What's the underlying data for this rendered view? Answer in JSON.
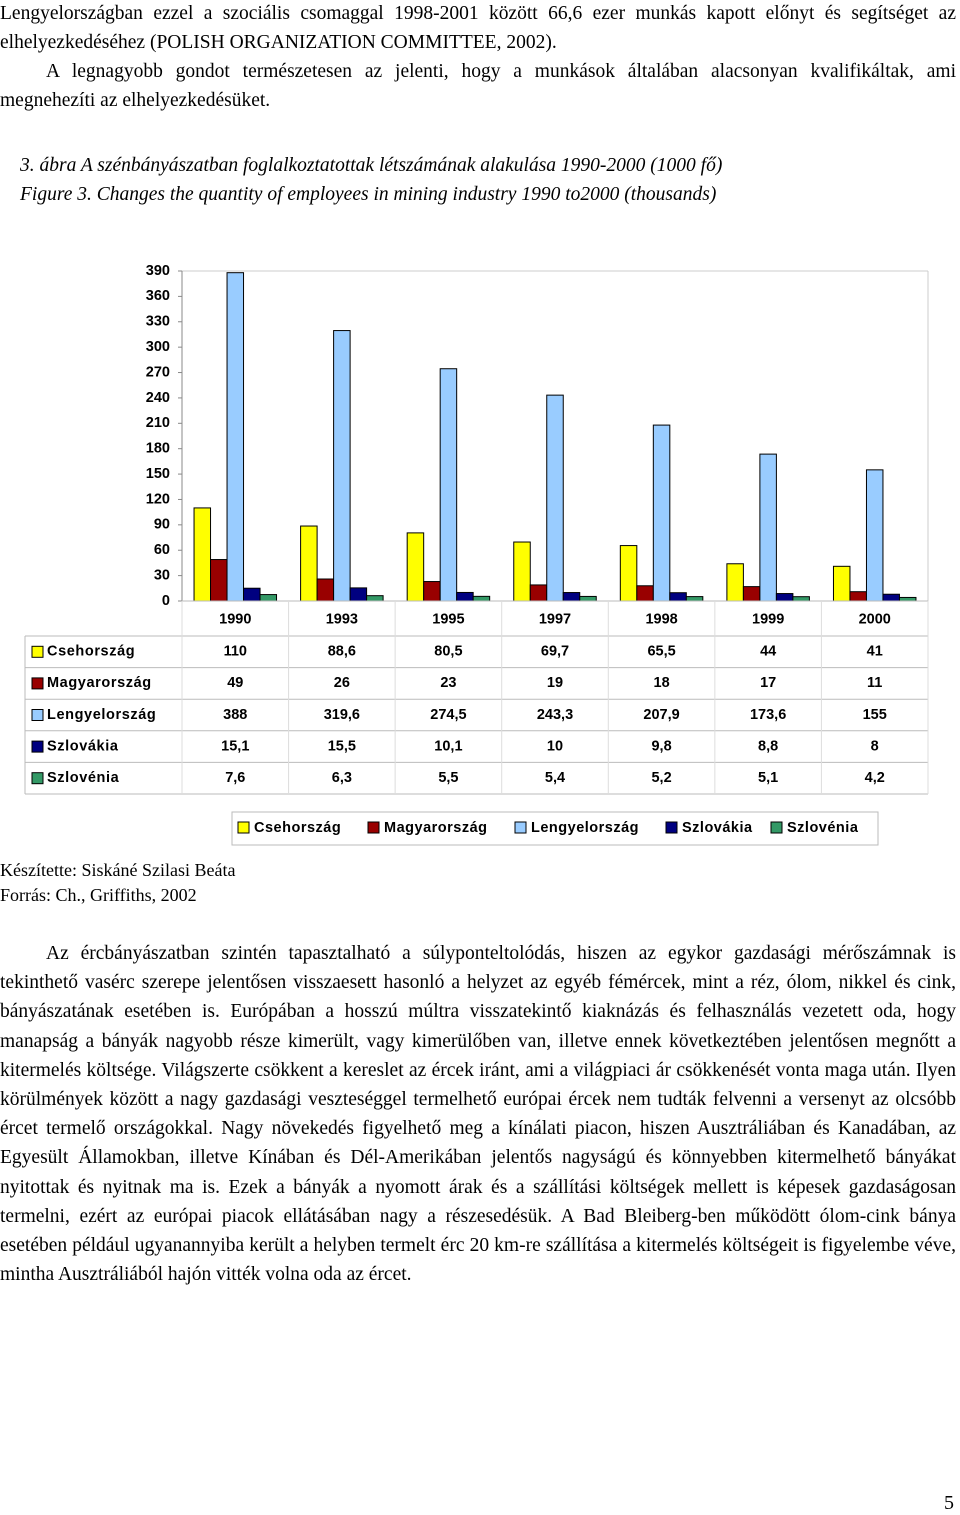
{
  "intro": [
    "Lengyelországban ezzel a szociális csomaggal 1998-2001 között 66,6 ezer munkás kapott előnyt és segítséget az elhelyezkedéséhez (POLISH ORGANIZATION COMMITTEE, 2002).",
    "A legnagyobb gondot természetesen az jelenti, hogy a munkások általában alacsonyan kvalifikáltak, ami megnehezíti az elhelyezkedésüket."
  ],
  "figure": {
    "caption_hu": "3. ábra A szénbányászatban foglalkoztatottak létszámának alakulása 1990-2000 (1000 fő)",
    "caption_en": "Figure 3. Changes the quantity of employees in mining industry 1990 to2000 (thousands)"
  },
  "chart_data": {
    "type": "bar",
    "categories": [
      "1990",
      "1993",
      "1995",
      "1997",
      "1998",
      "1999",
      "2000"
    ],
    "series": [
      {
        "name": "Csehország",
        "color": "#ffff00",
        "values": [
          110,
          88.6,
          80.5,
          69.7,
          65.5,
          44,
          41
        ],
        "value_labels": [
          "110",
          "88,6",
          "80,5",
          "69,7",
          "65,5",
          "44",
          "41"
        ]
      },
      {
        "name": "Magyarország",
        "color": "#990000",
        "values": [
          49,
          26,
          23,
          19,
          18,
          17,
          11
        ],
        "value_labels": [
          "49",
          "26",
          "23",
          "19",
          "18",
          "17",
          "11"
        ]
      },
      {
        "name": "Lengyelország",
        "color": "#99ccff",
        "values": [
          388,
          319.6,
          274.5,
          243.3,
          207.9,
          173.6,
          155
        ],
        "value_labels": [
          "388",
          "319,6",
          "274,5",
          "243,3",
          "207,9",
          "173,6",
          "155"
        ]
      },
      {
        "name": "Szlovákia",
        "color": "#000080",
        "values": [
          15.1,
          15.5,
          10.1,
          10,
          9.8,
          8.8,
          8
        ],
        "value_labels": [
          "15,1",
          "15,5",
          "10,1",
          "10",
          "9,8",
          "8,8",
          "8"
        ]
      },
      {
        "name": "Szlovénia",
        "color": "#339966",
        "values": [
          7.6,
          6.3,
          5.5,
          5.4,
          5.2,
          5.1,
          4.2
        ],
        "value_labels": [
          "7,6",
          "6,3",
          "5,5",
          "5,4",
          "5,2",
          "5,1",
          "4,2"
        ]
      }
    ],
    "ylim": [
      0,
      390
    ],
    "yticks": [
      0,
      30,
      60,
      90,
      120,
      150,
      180,
      210,
      240,
      270,
      300,
      330,
      360,
      390
    ],
    "grid": false,
    "data_table": true,
    "legend": "bottom"
  },
  "credits": [
    "Készítette: Siskáné Szilasi Beáta",
    "Forrás: Ch., Griffiths, 2002"
  ],
  "body": "Az ércbányászatban szintén tapasztalható a súlyponteltolódás, hiszen az egykor gazdasági mérőszámnak is tekinthető vasérc szerepe jelentősen visszaesett hasonló a helyzet az egyéb fémércek, mint a réz, ólom, nikkel és cink, bányászatának esetében is. Európában a hosszú múltra visszatekintő kiaknázás és felhasználás vezetett oda, hogy manapság a bányák nagyobb része kimerült, vagy kimerülőben van, illetve ennek következtében jelentősen megnőtt a kitermelés költsége. Világszerte csökkent a kereslet az ércek iránt, ami a világpiaci ár csökkenését vonta maga után. Ilyen körülmények között a nagy gazdasági veszteséggel termelhető európai ércek nem tudták felvenni a versenyt az olcsóbb ércet termelő országokkal. Nagy növekedés figyelhető meg a kínálati piacon, hiszen Ausztráliában és Kanadában, az Egyesült Államokban, illetve Kínában és Dél-Amerikában jelentős nagyságú és könnyebben kitermelhető bányákat nyitottak és nyitnak ma is. Ezek a bányák a nyomott árak és a szállítási költségek mellett is képesek gazdaságosan termelni, ezért az európai piacok ellátásában nagy a részesedésük. A Bad Bleiberg-ben működött ólom-cink bánya esetében például ugyanannyiba került a helyben termelt érc 20 km-re szállítása a kitermelés költségeit is figyelembe véve, mintha Ausztráliából hajón vitték volna oda az ércet.",
  "page_number": "5"
}
